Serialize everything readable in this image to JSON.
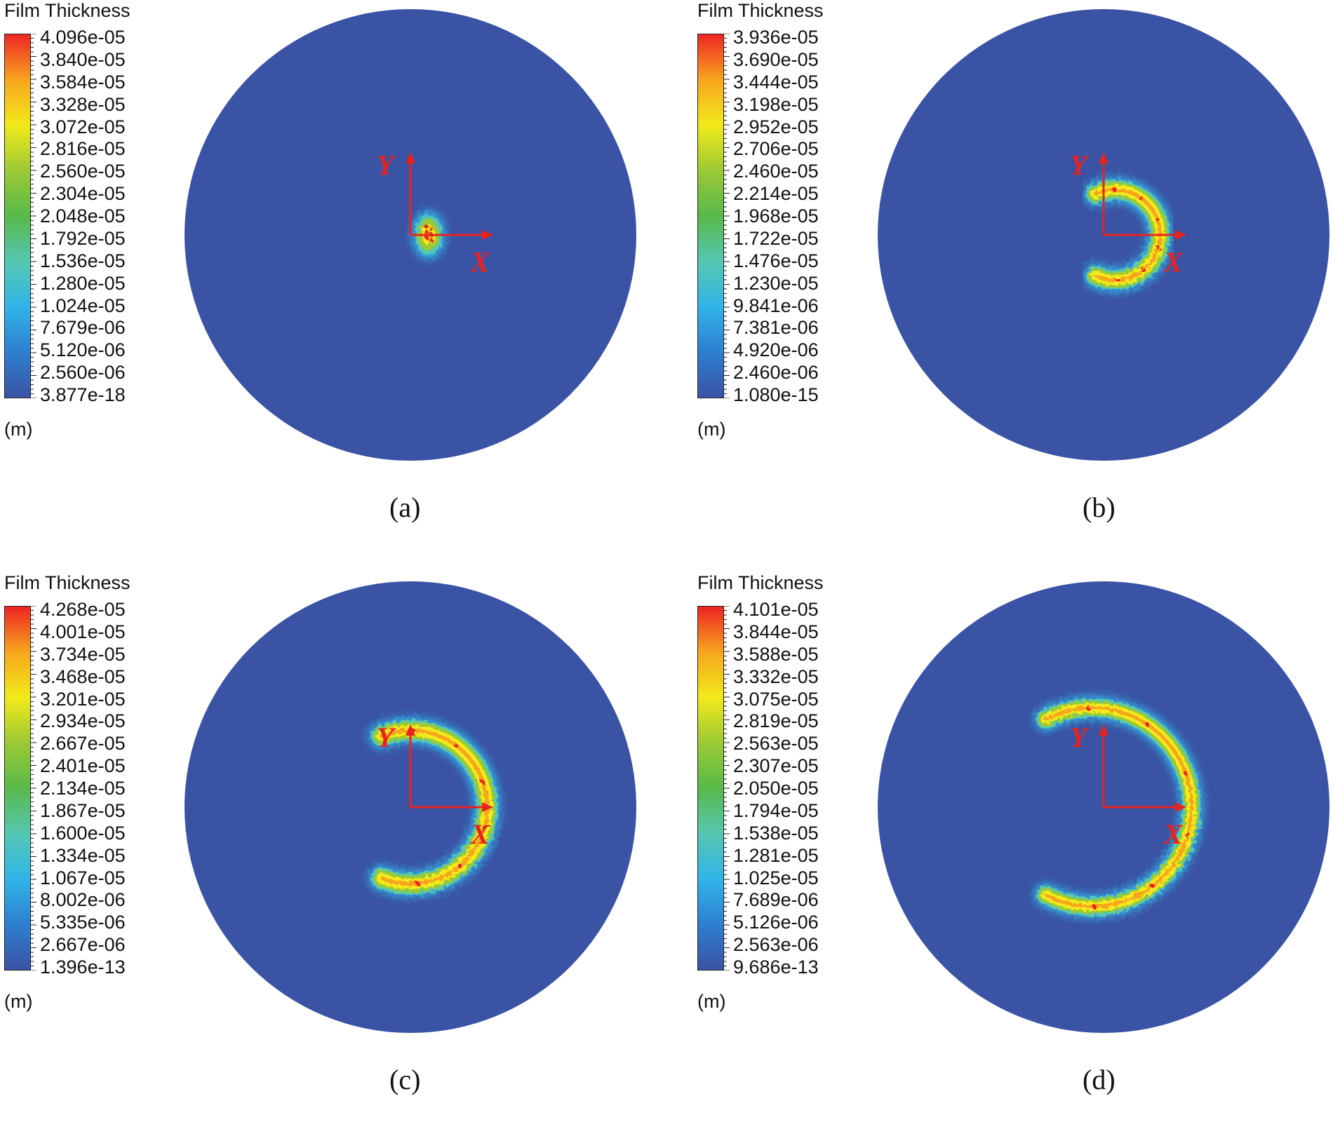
{
  "colors": {
    "background_fluid": "#3A53A4",
    "axis_arrow": "#E8231F",
    "colormap": [
      "#3A53A4",
      "#2E7FD0",
      "#30B4E8",
      "#56C7B2",
      "#58B94A",
      "#9CC935",
      "#F2EA1A",
      "#F7A51E",
      "#EE2424"
    ]
  },
  "chart_data": [
    {
      "type": "heatmap",
      "panel": "(a)",
      "legend_title": "Film Thickness",
      "unit": "(m)",
      "tick_labels": [
        "4.096e-05",
        "3.840e-05",
        "3.584e-05",
        "3.328e-05",
        "3.072e-05",
        "2.816e-05",
        "2.560e-05",
        "2.304e-05",
        "2.048e-05",
        "1.792e-05",
        "1.536e-05",
        "1.280e-05",
        "1.024e-05",
        "7.679e-06",
        "5.120e-06",
        "2.560e-06",
        "3.877e-18"
      ],
      "range": [
        3.877e-18,
        4.096e-05
      ],
      "axes": {
        "x_label": "X",
        "y_label": "Y"
      },
      "film_shape": {
        "form": "small crescent spot",
        "start_angle_deg": 100,
        "end_angle_deg": -100,
        "radius_fraction": 0.03,
        "thickness_fraction": 0.1,
        "center_offset_x": 0.08,
        "center_offset_y": 0.0
      }
    },
    {
      "type": "heatmap",
      "panel": "(b)",
      "legend_title": "Film Thickness",
      "unit": "(m)",
      "tick_labels": [
        "3.936e-05",
        "3.690e-05",
        "3.444e-05",
        "3.198e-05",
        "2.952e-05",
        "2.706e-05",
        "2.460e-05",
        "2.214e-05",
        "1.968e-05",
        "1.722e-05",
        "1.476e-05",
        "1.230e-05",
        "9.841e-06",
        "7.381e-06",
        "4.920e-06",
        "2.460e-06",
        "1.080e-15"
      ],
      "range": [
        1.08e-15,
        3.936e-05
      ],
      "axes": {
        "x_label": "X",
        "y_label": "Y"
      },
      "film_shape": {
        "form": "crescent",
        "start_angle_deg": 115,
        "end_angle_deg": -115,
        "radius_fraction": 0.2,
        "thickness_fraction": 0.08,
        "center_offset_x": 0.05,
        "center_offset_y": 0.0
      }
    },
    {
      "type": "heatmap",
      "panel": "(c)",
      "legend_title": "Film Thickness",
      "unit": "(m)",
      "tick_labels": [
        "4.268e-05",
        "4.001e-05",
        "3.734e-05",
        "3.468e-05",
        "3.201e-05",
        "2.934e-05",
        "2.667e-05",
        "2.401e-05",
        "2.134e-05",
        "1.867e-05",
        "1.600e-05",
        "1.334e-05",
        "1.067e-05",
        "8.002e-06",
        "5.335e-06",
        "2.667e-06",
        "1.396e-13"
      ],
      "range": [
        1.396e-13,
        4.268e-05
      ],
      "axes": {
        "x_label": "X",
        "y_label": "Y"
      },
      "film_shape": {
        "form": "crescent",
        "start_angle_deg": 112,
        "end_angle_deg": -112,
        "radius_fraction": 0.34,
        "thickness_fraction": 0.085,
        "center_offset_x": 0.0,
        "center_offset_y": 0.0
      }
    },
    {
      "type": "heatmap",
      "panel": "(d)",
      "legend_title": "Film Thickness",
      "unit": "(m)",
      "tick_labels": [
        "4.101e-05",
        "3.844e-05",
        "3.588e-05",
        "3.332e-05",
        "3.075e-05",
        "2.819e-05",
        "2.563e-05",
        "2.307e-05",
        "2.050e-05",
        "1.794e-05",
        "1.538e-05",
        "1.281e-05",
        "1.025e-05",
        "7.689e-06",
        "5.126e-06",
        "2.563e-06",
        "9.686e-13"
      ],
      "range": [
        9.686e-13,
        4.101e-05
      ],
      "axes": {
        "x_label": "X",
        "y_label": "Y"
      },
      "film_shape": {
        "form": "crescent",
        "start_angle_deg": 118,
        "end_angle_deg": -118,
        "radius_fraction": 0.44,
        "thickness_fraction": 0.075,
        "center_offset_x": -0.05,
        "center_offset_y": 0.0
      }
    }
  ]
}
